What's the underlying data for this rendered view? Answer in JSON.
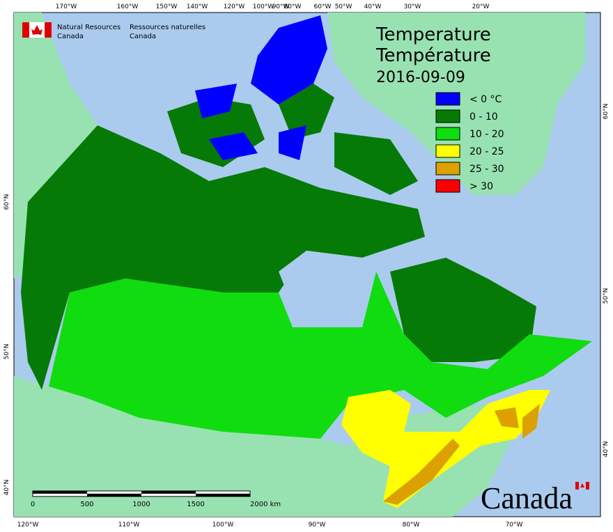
{
  "header": {
    "org_en": [
      "Natural Resources",
      "Canada"
    ],
    "org_fr": [
      "Ressources naturelles",
      "Canada"
    ]
  },
  "title": [
    "Temperature",
    "Température",
    "2016-09-09"
  ],
  "legend": [
    {
      "label": "< 0 °C",
      "color": "#0000ff"
    },
    {
      "label": "0 - 10",
      "color": "#067a06"
    },
    {
      "label": "10 - 20",
      "color": "#10dc10"
    },
    {
      "label": "20 - 25",
      "color": "#ffff00"
    },
    {
      "label": "25 - 30",
      "color": "#dca000"
    },
    {
      "label": "> 30",
      "color": "#ff0000"
    }
  ],
  "graticule": {
    "top": [
      "170°W",
      "160°W",
      "150°W",
      "140°W",
      "120°W",
      "100°W",
      "90°W",
      "80°W",
      "60°W",
      "50°W",
      "40°W",
      "30°W",
      "20°W"
    ],
    "bottom": [
      "120°W",
      "110°W",
      "100°W",
      "90°W",
      "80°W",
      "70°W"
    ],
    "left": [
      "60°N",
      "50°N",
      "40°N"
    ],
    "right": [
      "60°N",
      "50°N",
      "40°N"
    ]
  },
  "scale_bar": {
    "labels": [
      "0",
      "500",
      "1000",
      "1500",
      "2000 km"
    ]
  },
  "wordmark": "Canada"
}
